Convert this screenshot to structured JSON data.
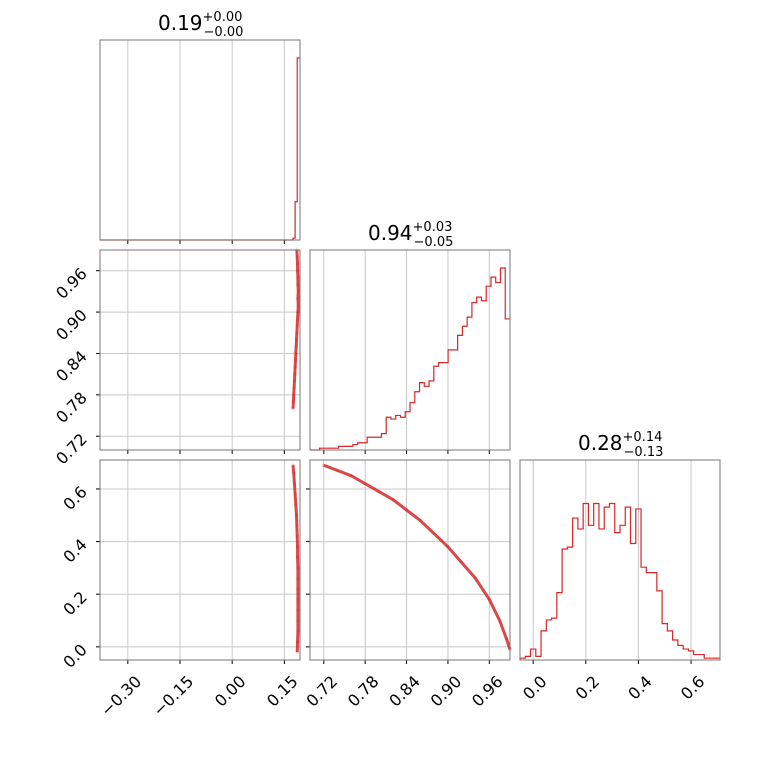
{
  "chart_data": {
    "type": "corner",
    "color": "#d62728",
    "grid": true,
    "panels": [
      {
        "id": "hist-p1",
        "type": "histogram",
        "title": {
          "median": "0.19",
          "plus": "+0.00",
          "minus": "−0.00"
        },
        "xlim": [
          -0.38,
          0.195
        ],
        "x_ticks": [
          -0.3,
          -0.15,
          0.0,
          0.15
        ],
        "bins": [
          {
            "x0": -0.38,
            "x1": 0.175,
            "count": 0
          },
          {
            "x0": 0.175,
            "x1": 0.181,
            "count": 0.01
          },
          {
            "x0": 0.181,
            "x1": 0.187,
            "count": 0.21
          },
          {
            "x0": 0.187,
            "x1": 0.195,
            "count": 1.0
          }
        ]
      },
      {
        "id": "hist-p2",
        "type": "histogram",
        "title": {
          "median": "0.94",
          "plus": "+0.03",
          "minus": "−0.05"
        },
        "xlim": [
          0.7,
          0.99
        ],
        "x_ticks": [
          0.72,
          0.78,
          0.84,
          0.9,
          0.96
        ],
        "x_tick_labels": [
          "0.72",
          "0.78",
          "0.84",
          "0.90",
          "0.96"
        ],
        "x_label_precision": 2,
        "bin_counts": [
          0,
          0,
          0.01,
          0.01,
          0.01,
          0.01,
          0.02,
          0.02,
          0.02,
          0.03,
          0.04,
          0.04,
          0.07,
          0.07,
          0.07,
          0.09,
          0.18,
          0.17,
          0.19,
          0.18,
          0.21,
          0.26,
          0.32,
          0.37,
          0.35,
          0.38,
          0.46,
          0.48,
          0.48,
          0.55,
          0.55,
          0.63,
          0.68,
          0.73,
          0.81,
          0.84,
          0.82,
          0.9,
          0.95,
          0.92,
          1.0,
          0.72
        ],
        "bin_range": [
          0.7,
          0.99
        ]
      },
      {
        "id": "hist-p3",
        "type": "histogram",
        "title": {
          "median": "0.28",
          "plus": "+0.14",
          "minus": "−0.13"
        },
        "xlim": [
          -0.05,
          0.71
        ],
        "x_ticks": [
          0.0,
          0.2,
          0.4,
          0.6
        ],
        "x_tick_labels": [
          "0.0",
          "0.2",
          "0.4",
          "0.6"
        ],
        "bin_counts": [
          0.01,
          0.02,
          0.06,
          0.02,
          0.16,
          0.22,
          0.23,
          0.37,
          0.61,
          0.62,
          0.78,
          0.72,
          0.86,
          0.74,
          0.86,
          0.72,
          0.84,
          0.86,
          0.7,
          0.74,
          0.84,
          0.64,
          0.83,
          0.51,
          0.48,
          0.48,
          0.38,
          0.2,
          0.16,
          0.11,
          0.08,
          0.06,
          0.05,
          0.03,
          0.03,
          0.01,
          0.01,
          0.01
        ],
        "bin_range": [
          -0.05,
          0.71
        ]
      },
      {
        "id": "scatter-p1-p2",
        "type": "scatter",
        "xlim": [
          -0.38,
          0.195
        ],
        "ylim": [
          0.7,
          0.99
        ],
        "y_ticks": [
          0.72,
          0.78,
          0.84,
          0.9,
          0.96
        ],
        "y_tick_labels": [
          "0.72",
          "0.78",
          "0.84",
          "0.90",
          "0.96"
        ],
        "points": [
          [
            0.186,
            0.99
          ],
          [
            0.187,
            0.98
          ],
          [
            0.188,
            0.97
          ],
          [
            0.188,
            0.96
          ],
          [
            0.189,
            0.95
          ],
          [
            0.189,
            0.94
          ],
          [
            0.19,
            0.93
          ],
          [
            0.189,
            0.92
          ],
          [
            0.19,
            0.91
          ],
          [
            0.189,
            0.9
          ],
          [
            0.188,
            0.89
          ],
          [
            0.187,
            0.88
          ],
          [
            0.186,
            0.87
          ],
          [
            0.185,
            0.86
          ],
          [
            0.184,
            0.85
          ],
          [
            0.183,
            0.84
          ],
          [
            0.182,
            0.83
          ],
          [
            0.181,
            0.82
          ],
          [
            0.18,
            0.81
          ],
          [
            0.179,
            0.8
          ],
          [
            0.178,
            0.79
          ],
          [
            0.177,
            0.78
          ],
          [
            0.176,
            0.77
          ],
          [
            0.175,
            0.76
          ]
        ]
      },
      {
        "id": "scatter-p1-p3",
        "type": "scatter",
        "xlim": [
          -0.38,
          0.195
        ],
        "ylim": [
          -0.05,
          0.71
        ],
        "y_ticks": [
          0.0,
          0.2,
          0.4,
          0.6
        ],
        "y_tick_labels": [
          "0.0",
          "0.2",
          "0.4",
          "0.6"
        ],
        "x_ticks": [
          -0.3,
          -0.15,
          0.0,
          0.15
        ],
        "x_tick_labels": [
          "−0.30",
          "−0.15",
          "0.00",
          "0.15"
        ],
        "points": [
          [
            0.175,
            0.69
          ],
          [
            0.177,
            0.66
          ],
          [
            0.179,
            0.62
          ],
          [
            0.181,
            0.58
          ],
          [
            0.183,
            0.54
          ],
          [
            0.185,
            0.5
          ],
          [
            0.186,
            0.46
          ],
          [
            0.187,
            0.42
          ],
          [
            0.188,
            0.38
          ],
          [
            0.188,
            0.34
          ],
          [
            0.189,
            0.3
          ],
          [
            0.189,
            0.26
          ],
          [
            0.189,
            0.22
          ],
          [
            0.189,
            0.18
          ],
          [
            0.189,
            0.14
          ],
          [
            0.189,
            0.1
          ],
          [
            0.189,
            0.06
          ],
          [
            0.188,
            0.02
          ],
          [
            0.187,
            -0.02
          ]
        ]
      },
      {
        "id": "scatter-p2-p3",
        "type": "scatter",
        "xlim": [
          0.7,
          0.99
        ],
        "ylim": [
          -0.05,
          0.71
        ],
        "x_ticks": [
          0.72,
          0.78,
          0.84,
          0.9,
          0.96
        ],
        "x_tick_labels": [
          "0.72",
          "0.78",
          "0.84",
          "0.90",
          "0.96"
        ],
        "points": [
          [
            0.72,
            0.69
          ],
          [
            0.74,
            0.67
          ],
          [
            0.76,
            0.65
          ],
          [
            0.78,
            0.62
          ],
          [
            0.8,
            0.59
          ],
          [
            0.82,
            0.56
          ],
          [
            0.84,
            0.52
          ],
          [
            0.86,
            0.48
          ],
          [
            0.88,
            0.43
          ],
          [
            0.9,
            0.38
          ],
          [
            0.92,
            0.32
          ],
          [
            0.94,
            0.26
          ],
          [
            0.96,
            0.18
          ],
          [
            0.975,
            0.1
          ],
          [
            0.985,
            0.03
          ],
          [
            0.99,
            -0.01
          ]
        ]
      }
    ]
  }
}
